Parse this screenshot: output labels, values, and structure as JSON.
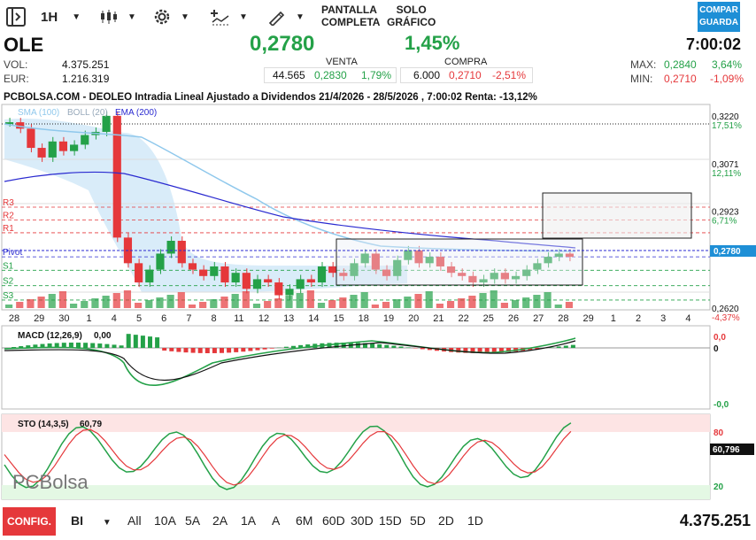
{
  "toolbar": {
    "interval": "1H",
    "screen_full": "PANTALLA\nCOMPLETA",
    "screen_full_1": "PANTALLA",
    "screen_full_2": "COMPLETA",
    "solo_1": "SOLO",
    "solo_2": "GRÁFICO",
    "compare_1": "COMPAR",
    "compare_2": "GUARDA"
  },
  "quote": {
    "ticker": "OLE",
    "price": "0,2780",
    "change_pct": "1,45%",
    "time": "7:00:02",
    "vol_label": "VOL:",
    "vol_value": "4.375.251",
    "eur_label": "EUR:",
    "eur_value": "1.216.319",
    "venta_label": "VENTA",
    "venta_qty": "44.565",
    "venta_price": "0,2830",
    "venta_pct": "1,79%",
    "compra_label": "COMPRA",
    "compra_qty": "6.000",
    "compra_price": "0,2710",
    "compra_pct": "-2,51%",
    "max_label": "MAX:",
    "max_value": "0,2840",
    "max_pct": "3,64%",
    "min_label": "MIN:",
    "min_value": "0,2710",
    "min_pct": "-1,09%"
  },
  "colors": {
    "up": "#24a148",
    "down": "#e5383b",
    "accent": "#1e8fd6",
    "ema": "#2a2ad0",
    "sma": "#8fc8ec"
  },
  "chart_data": [
    {
      "type": "candlestick",
      "title": "PCBOLSA.COM - DEOLEO Intradia Lineal Ajustado a Dividendos 21/4/2026 - 28/5/2026 , 7:00:02 Renta: -13,12%",
      "legend": [
        "SMA (100)",
        "BOLL (20)",
        "EMA (200)"
      ],
      "x_ticks": [
        "28",
        "29",
        "30",
        "1",
        "4",
        "5",
        "6",
        "7",
        "8",
        "11",
        "12",
        "13",
        "14",
        "15",
        "18",
        "19",
        "20",
        "21",
        "22",
        "25",
        "26",
        "27",
        "28",
        "29",
        "1",
        "2",
        "3",
        "4"
      ],
      "y_ticks": [
        {
          "value": 0.322,
          "label": "0,3220",
          "pct": "17,51%"
        },
        {
          "value": 0.3071,
          "label": "0,3071",
          "pct": "12,11%"
        },
        {
          "value": 0.2923,
          "label": "0,2923",
          "pct": "6,71%"
        },
        {
          "value": 0.262,
          "label": "0,2620",
          "pct": "-4,37%"
        }
      ],
      "last_value": "0,2780",
      "pivot_levels": [
        {
          "name": "R3",
          "value": 0.2935
        },
        {
          "name": "R2",
          "value": 0.2895
        },
        {
          "name": "R1",
          "value": 0.2855
        },
        {
          "name": "Pivot",
          "value": 0.278
        },
        {
          "name": "S1",
          "value": 0.2738
        },
        {
          "name": "S2",
          "value": 0.269
        },
        {
          "name": "S3",
          "value": 0.2645
        }
      ],
      "ylim": [
        0.262,
        0.325
      ],
      "close_series": [
        0.32,
        0.318,
        0.312,
        0.309,
        0.314,
        0.311,
        0.313,
        0.316,
        0.317,
        0.322,
        0.284,
        0.276,
        0.27,
        0.274,
        0.279,
        0.283,
        0.276,
        0.274,
        0.272,
        0.275,
        0.27,
        0.273,
        0.268,
        0.271,
        0.27,
        0.266,
        0.268,
        0.271,
        0.27,
        0.275,
        0.273,
        0.272,
        0.276,
        0.279,
        0.274,
        0.272,
        0.277,
        0.28,
        0.276,
        0.278,
        0.275,
        0.273,
        0.272,
        0.27,
        0.271,
        0.273,
        0.271,
        0.272,
        0.274,
        0.276,
        0.278,
        0.279,
        0.278
      ]
    },
    {
      "type": "line",
      "title": "MACD (12,26,9)",
      "value": "0,00",
      "y_ticks": [
        "0,0",
        "0",
        "-0,0"
      ]
    },
    {
      "type": "line",
      "title": "STO (14,3,5)",
      "value": "60,79",
      "last_value": "60,796",
      "y_ticks": [
        "80",
        "20"
      ]
    }
  ],
  "watermark": "PCBolsa",
  "bottom": {
    "conf": "CONFIG.",
    "style": "BI",
    "periods": [
      "All",
      "10A",
      "5A",
      "2A",
      "1A",
      "A",
      "6M",
      "60D",
      "30D",
      "15D",
      "5D",
      "2D",
      "1D"
    ],
    "volume": "4.375.251"
  }
}
